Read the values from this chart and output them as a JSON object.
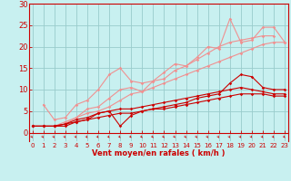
{
  "background_color": "#c8f0f0",
  "grid_color": "#99cccc",
  "line_color_light": "#f09090",
  "line_color_dark": "#cc0000",
  "xlabel": "Vent moyen/en rafales ( km/h )",
  "xlim": [
    -0.3,
    23.3
  ],
  "ylim": [
    -2,
    30
  ],
  "yticks": [
    0,
    5,
    10,
    15,
    20,
    25,
    30
  ],
  "xticks": [
    0,
    1,
    2,
    3,
    4,
    5,
    6,
    7,
    8,
    9,
    10,
    11,
    12,
    13,
    14,
    15,
    16,
    17,
    18,
    19,
    20,
    21,
    22,
    23
  ],
  "series_light": [
    {
      "x": [
        1,
        2,
        3,
        4,
        5,
        6,
        7,
        8,
        9,
        10,
        11,
        12,
        13,
        14,
        15,
        16,
        17,
        18,
        19,
        20,
        21,
        22,
        23
      ],
      "y": [
        6.5,
        3.0,
        3.5,
        6.5,
        7.5,
        10.0,
        13.5,
        15.0,
        12.0,
        11.5,
        12.0,
        14.0,
        16.0,
        15.5,
        17.5,
        20.0,
        19.5,
        26.5,
        21.0,
        21.5,
        24.5,
        24.5,
        21.0
      ]
    },
    {
      "x": [
        2,
        3,
        4,
        5,
        6,
        7,
        8,
        9,
        10,
        11,
        12,
        13,
        14,
        15,
        16,
        17,
        18,
        19,
        20,
        21,
        22
      ],
      "y": [
        1.5,
        2.0,
        3.5,
        5.5,
        6.0,
        8.0,
        10.0,
        10.5,
        9.5,
        12.0,
        12.5,
        14.5,
        15.5,
        17.0,
        18.5,
        20.0,
        21.0,
        21.5,
        22.0,
        22.5,
        22.5
      ]
    },
    {
      "x": [
        2,
        3,
        4,
        5,
        6,
        7,
        8,
        9,
        10,
        11,
        12,
        13,
        14,
        15,
        16,
        17,
        18,
        19,
        20,
        21,
        22,
        23
      ],
      "y": [
        1.5,
        2.5,
        3.5,
        4.5,
        5.0,
        6.0,
        7.5,
        9.0,
        9.5,
        10.5,
        11.5,
        12.5,
        13.5,
        14.5,
        15.5,
        16.5,
        17.5,
        18.5,
        19.5,
        20.5,
        21.0,
        21.0
      ]
    }
  ],
  "series_dark": [
    {
      "x": [
        0,
        1,
        2,
        3,
        4,
        5,
        6,
        7,
        8,
        9,
        10,
        11,
        12,
        13,
        14,
        15,
        16,
        17,
        18,
        19,
        20,
        21,
        22,
        23
      ],
      "y": [
        1.5,
        1.5,
        1.5,
        1.5,
        2.5,
        3.0,
        4.5,
        5.0,
        1.5,
        4.0,
        5.0,
        5.5,
        6.0,
        6.5,
        7.0,
        8.0,
        8.5,
        9.0,
        11.5,
        13.5,
        13.0,
        10.5,
        10.0,
        10.0
      ]
    },
    {
      "x": [
        0,
        1,
        2,
        3,
        4,
        5,
        6,
        7,
        8,
        9,
        10,
        11,
        12,
        13,
        14,
        15,
        16,
        17,
        18,
        19,
        20,
        21,
        22,
        23
      ],
      "y": [
        1.5,
        1.5,
        1.5,
        2.0,
        3.0,
        3.5,
        4.5,
        5.0,
        5.5,
        5.5,
        6.0,
        6.5,
        7.0,
        7.5,
        8.0,
        8.5,
        9.0,
        9.5,
        10.0,
        10.5,
        10.0,
        9.5,
        9.0,
        9.0
      ]
    },
    {
      "x": [
        0,
        1,
        2,
        3,
        4,
        5,
        6,
        7,
        8,
        9,
        10,
        11,
        12,
        13,
        14,
        15,
        16,
        17,
        18,
        19,
        20,
        21,
        22,
        23
      ],
      "y": [
        1.5,
        1.5,
        1.5,
        2.0,
        2.5,
        3.0,
        3.5,
        4.0,
        4.5,
        4.5,
        5.0,
        5.5,
        5.5,
        6.0,
        6.5,
        7.0,
        7.5,
        8.0,
        8.5,
        9.0,
        9.0,
        9.0,
        8.5,
        8.5
      ]
    }
  ]
}
